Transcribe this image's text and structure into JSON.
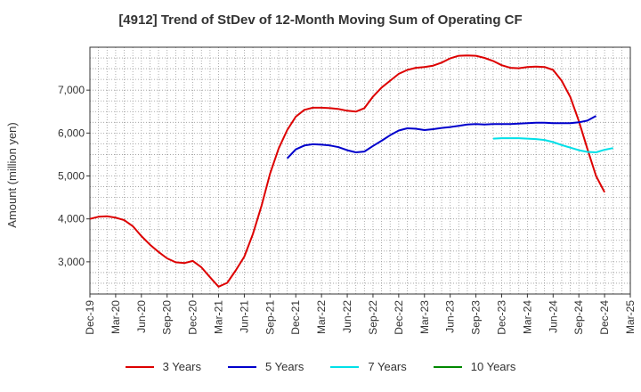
{
  "chart_data": {
    "type": "line",
    "title": "[4912]  Trend of StDev of 12-Month Moving Sum of Operating CF",
    "xlabel": "",
    "ylabel": "Amount (million yen)",
    "ylim": [
      2250,
      8000
    ],
    "yticks": [
      3000,
      4000,
      5000,
      6000,
      7000
    ],
    "ytick_labels": [
      "3,000",
      "4,000",
      "5,000",
      "6,000",
      "7,000"
    ],
    "x_start": "Dec-19",
    "x_months_total": 63,
    "xtick_labels": [
      "Dec-19",
      "Mar-20",
      "Jun-20",
      "Sep-20",
      "Dec-20",
      "Mar-21",
      "Jun-21",
      "Sep-21",
      "Dec-21",
      "Mar-22",
      "Jun-22",
      "Sep-22",
      "Dec-22",
      "Mar-23",
      "Jun-23",
      "Sep-23",
      "Dec-23",
      "Mar-24",
      "Jun-24",
      "Sep-24",
      "Dec-24",
      "Mar-25"
    ],
    "grid": true,
    "legend_position": "bottom",
    "series": [
      {
        "name": "3 Years",
        "color": "#dd0000",
        "start": "Dec-19",
        "values": [
          4000,
          4050,
          4060,
          4030,
          3970,
          3830,
          3600,
          3400,
          3230,
          3080,
          2990,
          2970,
          3020,
          2870,
          2640,
          2420,
          2510,
          2800,
          3120,
          3650,
          4300,
          5050,
          5640,
          6070,
          6380,
          6540,
          6590,
          6590,
          6580,
          6560,
          6520,
          6500,
          6580,
          6850,
          7060,
          7220,
          7380,
          7470,
          7520,
          7540,
          7570,
          7640,
          7740,
          7800,
          7810,
          7800,
          7750,
          7680,
          7580,
          7520,
          7510,
          7540,
          7550,
          7540,
          7470,
          7220,
          6840,
          6280,
          5630,
          5000,
          4620
        ]
      },
      {
        "name": "5 Years",
        "color": "#0000cc",
        "start": "Nov-21",
        "values": [
          5410,
          5620,
          5710,
          5740,
          5730,
          5710,
          5670,
          5600,
          5550,
          5570,
          5700,
          5820,
          5950,
          6060,
          6110,
          6100,
          6070,
          6090,
          6120,
          6140,
          6170,
          6200,
          6210,
          6200,
          6210,
          6210,
          6210,
          6220,
          6230,
          6240,
          6240,
          6230,
          6230,
          6230,
          6250,
          6290,
          6400
        ]
      },
      {
        "name": "7 Years",
        "color": "#00e0e8",
        "start": "Nov-23",
        "values": [
          5870,
          5880,
          5880,
          5880,
          5870,
          5860,
          5840,
          5790,
          5720,
          5660,
          5600,
          5560,
          5550,
          5610,
          5650
        ]
      },
      {
        "name": "10 Years",
        "color": "#008800",
        "start": "Dec-24",
        "values": []
      }
    ]
  }
}
